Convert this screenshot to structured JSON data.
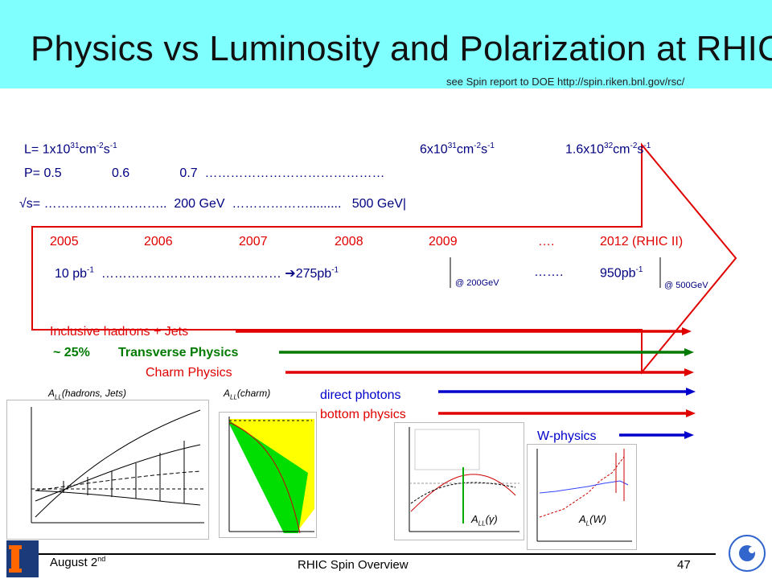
{
  "slide": {
    "title": "Physics vs Luminosity and Polarization at RHIC",
    "subtitle": "see Spin report to DOE http://spin.riken.bnl.gov/rsc/"
  },
  "rows": {
    "lum_prefix": "L= 1x10",
    "lum_exp1": "31",
    "lum_unit_a": "cm",
    "lum_exp_a": "-2",
    "lum_unit_b": "s",
    "lum_exp_b": "-1",
    "lum2_prefix": "6x10",
    "lum2_exp1": "31",
    "lum3_prefix": "1.6x10",
    "lum3_exp1": "32",
    "pol": "P= 0.5              0.6              0.7  ……………………………………",
    "sqrt_s": "√s= ………………………..  200 GeV  ……………….........   500 GeV|"
  },
  "timeline": {
    "years": [
      "2005",
      "2006",
      "2007",
      "2008",
      "2009",
      "….",
      "2012 (RHIC II)"
    ],
    "lum_start": "10 pb",
    "lum_start_exp": "-1",
    "dots1": "…………………………………… ",
    "lum_mid": "275pb",
    "lum_mid_exp": "-1",
    "at_200": "@ 200GeV",
    "dots2": "…….",
    "lum_end": "950pb",
    "lum_end_exp": "-1",
    "at_500": "@ 500GeV"
  },
  "physics": {
    "inclusive": "Inclusive hadrons + Jets",
    "transverse_pct": "~ 25%",
    "transverse": "Transverse Physics",
    "charm": "Charm Physics",
    "direct_photons": "direct photons",
    "bottom": "bottom physics",
    "wphysics": "W-physics"
  },
  "plot_labels": {
    "all_hadrons_a": "A",
    "all_hadrons_sub": "LL",
    "all_hadrons_b": "(hadrons, Jets)",
    "all_charm_a": "A",
    "all_charm_sub": "LL",
    "all_charm_b": "(charm)",
    "all_gamma_a": "A",
    "all_gamma_sub": "LL",
    "all_gamma_b": "(γ)",
    "al_w_a": "A",
    "al_w_sub": "L",
    "al_w_b": "(W)"
  },
  "footer": {
    "date": "August 2",
    "date_sup": "nd",
    "center": "RHIC Spin Overview",
    "page": "47"
  },
  "colors": {
    "header_bg": "#80ffff",
    "red": "#e00000",
    "green": "#007a00",
    "blue": "#0000cc",
    "navy": "#000080"
  }
}
